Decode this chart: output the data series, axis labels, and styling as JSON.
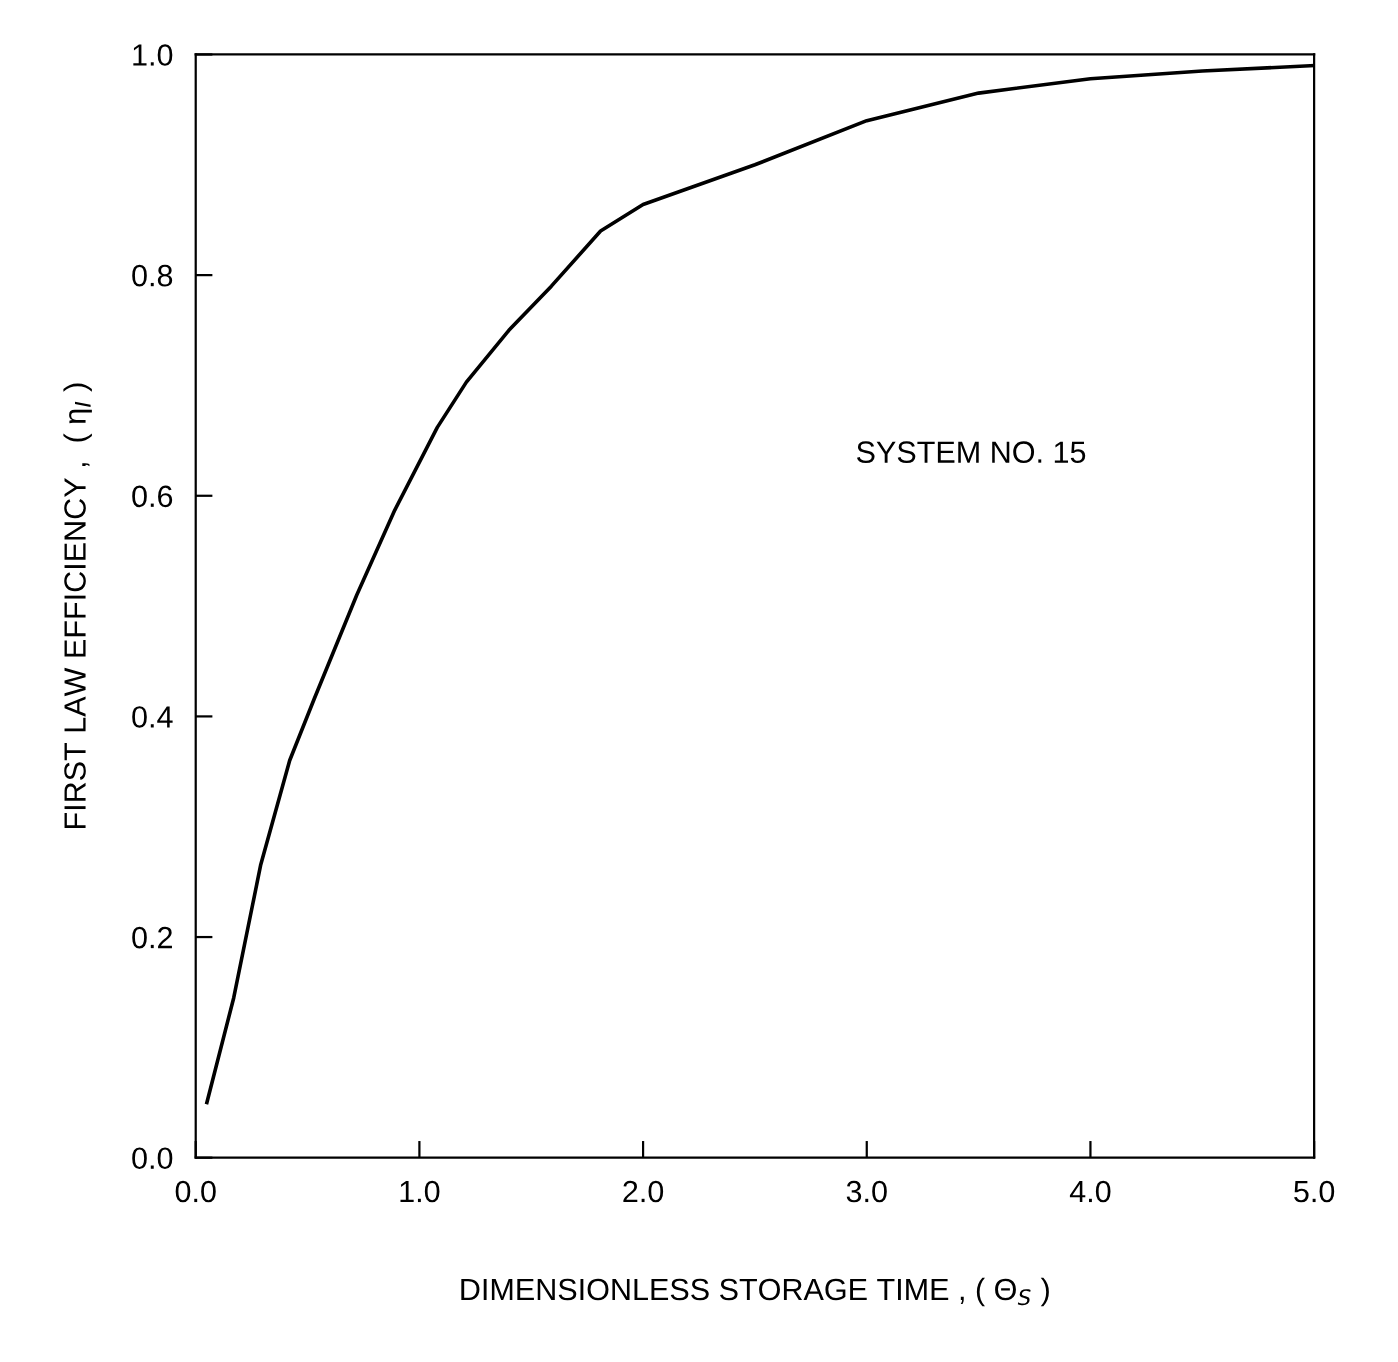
{
  "chart_data": {
    "type": "line",
    "xlabel": "DIMENSIONLESS STORAGE TIME , ( Θ$_{S}$ )",
    "ylabel": "FIRST LAW EFFICIENCY ,  ( η$_{I}$ )",
    "annotations": [
      "SYSTEM NO. 15"
    ],
    "x": [
      0.05,
      0.17,
      0.29,
      0.42,
      0.53,
      0.72,
      0.89,
      1.08,
      1.21,
      1.4,
      1.59,
      1.81,
      2.0,
      2.5,
      3.0,
      3.5,
      4.0,
      4.5,
      5.0
    ],
    "series": [
      {
        "color": "#000000",
        "values": [
          0.05,
          0.145,
          0.265,
          0.36,
          0.416,
          0.51,
          0.587,
          0.662,
          0.703,
          0.75,
          0.79,
          0.84,
          0.864,
          0.9,
          0.94,
          0.965,
          0.978,
          0.985,
          0.99
        ]
      }
    ],
    "xlim": [
      0,
      5
    ],
    "ylim": [
      0,
      1
    ],
    "xticks": [
      {
        "value": 0,
        "label": "0.0"
      },
      {
        "value": 1,
        "label": "1.0"
      },
      {
        "value": 2,
        "label": "2.0"
      },
      {
        "value": 3,
        "label": "3.0"
      },
      {
        "value": 4,
        "label": "4.0"
      },
      {
        "value": 5,
        "label": "5.0"
      }
    ],
    "yticks": [
      {
        "value": 0,
        "label": "0.0"
      },
      {
        "value": 0.2,
        "label": "0.2"
      },
      {
        "value": 0.4,
        "label": "0.4"
      },
      {
        "value": 0.6,
        "label": "0.6"
      },
      {
        "value": 0.8,
        "label": "0.8"
      },
      {
        "value": 1,
        "label": "1.0"
      }
    ],
    "grid": false,
    "marker": "none",
    "line_style": "solid"
  }
}
